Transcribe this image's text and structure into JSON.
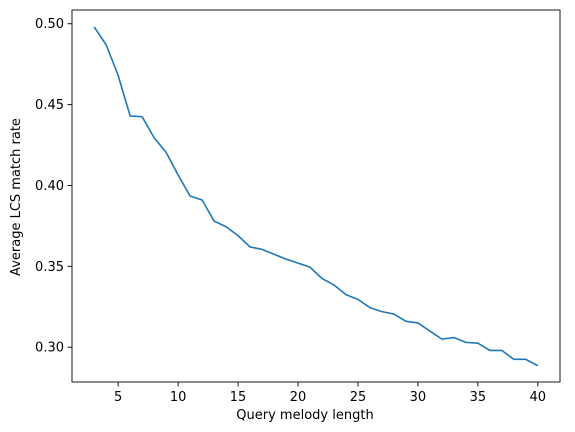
{
  "chart_data": {
    "type": "line",
    "title": "",
    "xlabel": "Query melody length",
    "ylabel": "Average LCS match rate",
    "xlim": [
      1.15,
      41.85
    ],
    "ylim": [
      0.2785,
      0.5085
    ],
    "xticks": [
      5,
      10,
      15,
      20,
      25,
      30,
      35,
      40
    ],
    "xtick_labels": [
      "5",
      "10",
      "15",
      "20",
      "25",
      "30",
      "35",
      "40"
    ],
    "yticks": [
      0.3,
      0.35,
      0.4,
      0.45,
      0.5
    ],
    "ytick_labels": [
      "0.30",
      "0.35",
      "0.40",
      "0.45",
      "0.50"
    ],
    "grid": false,
    "line_color": "#1f77b4",
    "series": [
      {
        "x": [
          3,
          4,
          5,
          6,
          7,
          8,
          9,
          10,
          11,
          12,
          13,
          14,
          15,
          16,
          17,
          18,
          19,
          20,
          21,
          22,
          23,
          24,
          25,
          26,
          27,
          28,
          29,
          30,
          31,
          32,
          33,
          34,
          35,
          36,
          37,
          38,
          39,
          40
        ],
        "values": [
          0.498,
          0.487,
          0.468,
          0.443,
          0.4425,
          0.4295,
          0.4205,
          0.4065,
          0.3935,
          0.391,
          0.378,
          0.3745,
          0.369,
          0.362,
          0.3605,
          0.3575,
          0.3545,
          0.352,
          0.3495,
          0.3425,
          0.3385,
          0.3325,
          0.3295,
          0.3245,
          0.322,
          0.3205,
          0.316,
          0.315,
          0.31,
          0.305,
          0.306,
          0.303,
          0.3025,
          0.298,
          0.298,
          0.2925,
          0.2925,
          0.2885
        ]
      }
    ]
  }
}
